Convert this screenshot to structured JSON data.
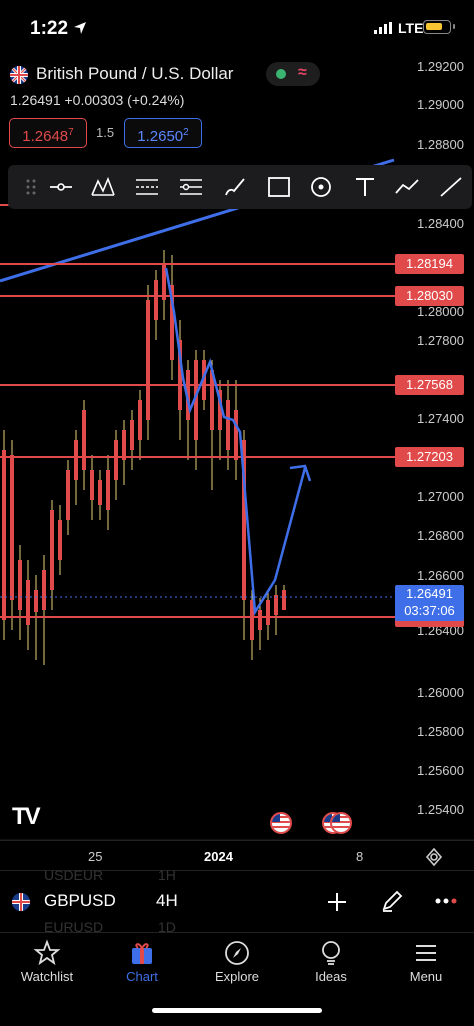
{
  "status": {
    "time": "1:22",
    "network": "LTE"
  },
  "instrument": {
    "title": "British Pound / U.S. Dollar",
    "quote": "1.26491 +0.00303 (+0.24%)",
    "bid": "1.2648",
    "bid_sup": "7",
    "spread": "1.5",
    "ask": "1.2650",
    "ask_sup": "2"
  },
  "toolbar": {
    "items": [
      "drag-handle",
      "line-tool",
      "pattern-tool",
      "fib-tool",
      "parallel-channel-tool",
      "brush-tool",
      "rectangle-tool",
      "circle-tool",
      "text-tool",
      "path-tool",
      "trend-line-tool"
    ]
  },
  "price_axis": [
    "1.29200",
    "1.29000",
    "1.28800",
    "1.28400",
    "1.28000",
    "1.27800",
    "1.27400",
    "1.27000",
    "1.26800",
    "1.26600",
    "1.26400",
    "1.26000",
    "1.25800",
    "1.25600",
    "1.25400"
  ],
  "levels": [
    "1.28194",
    "1.28030",
    "1.27568",
    "1.27203",
    "1.26243"
  ],
  "current_price": {
    "price": "1.26491",
    "countdown": "03:37:06"
  },
  "time_axis": {
    "labels": [
      "25",
      "2024",
      "8"
    ]
  },
  "logo": "TV",
  "symbol_bar": {
    "symbol": "GBPUSD",
    "timeframe": "4H",
    "ghost_top_symbol": "USDEUR",
    "ghost_top_tf": "1H",
    "ghost_bottom_symbol": "EURUSD",
    "ghost_bottom_tf": "1D"
  },
  "tabs": [
    {
      "label": "Watchlist",
      "icon": "star-icon"
    },
    {
      "label": "Chart",
      "icon": "chart-gift-icon",
      "active": true
    },
    {
      "label": "Explore",
      "icon": "compass-icon"
    },
    {
      "label": "Ideas",
      "icon": "lightbulb-icon"
    },
    {
      "label": "Menu",
      "icon": "menu-icon"
    }
  ],
  "colors": {
    "bull": "#3f6fe8",
    "bear": "#e14a4a",
    "wick": "#e8d27a",
    "accent": "#3f6fe8",
    "background": "#000000"
  }
}
